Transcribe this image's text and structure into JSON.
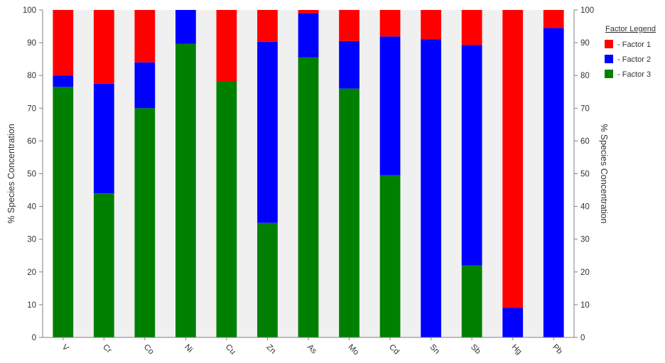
{
  "chart_data": {
    "type": "bar",
    "stacked": true,
    "categories": [
      "V",
      "Cr",
      "Co",
      "Ni",
      "Cu",
      "Zn",
      "As",
      "Mo",
      "Cd",
      "Sn",
      "Sb",
      "Hg",
      "Pb"
    ],
    "series": [
      {
        "name": "Factor 3",
        "color": "#008000",
        "values": [
          76.5,
          44,
          70,
          89.7,
          78.3,
          35,
          85.5,
          76,
          49.5,
          0,
          22,
          0,
          0
        ]
      },
      {
        "name": "Factor 2",
        "color": "#0000ff",
        "values": [
          3.5,
          33.5,
          14,
          10.3,
          0,
          55.3,
          13.5,
          14.5,
          42.4,
          91,
          67.3,
          9,
          94.5
        ]
      },
      {
        "name": "Factor 1",
        "color": "#ff0000",
        "values": [
          20,
          22.5,
          16,
          0,
          21.7,
          9.7,
          1,
          9.5,
          8.1,
          9,
          10.7,
          91,
          5.5
        ]
      }
    ],
    "ylabel": "% Species Concentration",
    "ylabel_right": "% Species Concentration",
    "ylim": [
      0,
      100
    ],
    "yticks": [
      "0",
      "10",
      "20",
      "30",
      "40",
      "50",
      "60",
      "70",
      "80",
      "90",
      "100"
    ],
    "legend": {
      "title": "Factor Legend",
      "placement": "top-right",
      "items": [
        {
          "label": "- Factor 1",
          "color": "#ff0000"
        },
        {
          "label": "- Factor 2",
          "color": "#0000ff"
        },
        {
          "label": "- Factor 3",
          "color": "#008000"
        }
      ]
    },
    "band_color": "#f0f0f0"
  }
}
